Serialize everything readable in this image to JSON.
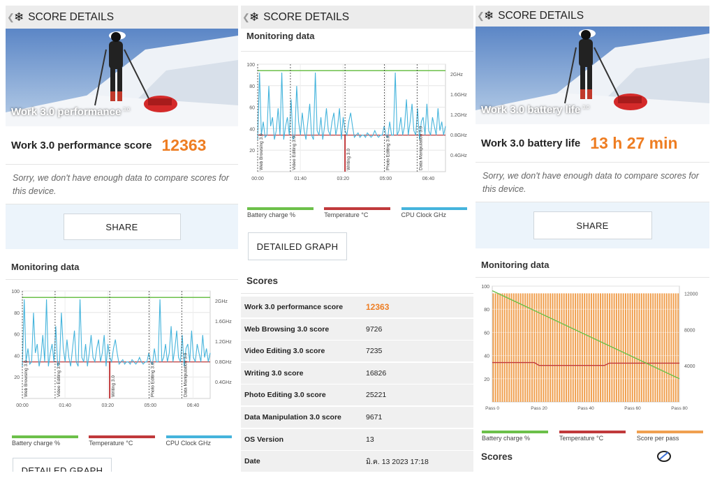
{
  "panel1": {
    "header_title": "SCORE DETAILS",
    "hero_label": "Work 3.0 performance",
    "hero_sup": "3.0",
    "score_label": "Work 3.0 performance score",
    "score_value": "12363",
    "sorry_text": "Sorry, we don't have enough data to compare scores for this device.",
    "share_label": "SHARE",
    "monitoring_title": "Monitoring data",
    "detailed_graph_label": "DETAILED GRAPH"
  },
  "panel2": {
    "header_title": "SCORE DETAILS",
    "monitoring_title": "Monitoring data",
    "detailed_graph_label": "DETAILED GRAPH",
    "scores_title": "Scores",
    "scores": [
      {
        "name": "Work 3.0 performance score",
        "value": "12363"
      },
      {
        "name": "Web Browsing 3.0 score",
        "value": "9726"
      },
      {
        "name": "Video Editing 3.0 score",
        "value": "7235"
      },
      {
        "name": "Writing 3.0 score",
        "value": "16826"
      },
      {
        "name": "Photo Editing 3.0 score",
        "value": "25221"
      },
      {
        "name": "Data Manipulation 3.0 score",
        "value": "9671"
      },
      {
        "name": "OS Version",
        "value": "13"
      },
      {
        "name": "Date",
        "value": "มิ.ค. 13 2023 17:18"
      }
    ]
  },
  "panel3": {
    "header_title": "SCORE DETAILS",
    "hero_label": "Work 3.0 battery life",
    "hero_sup": "3.0",
    "score_label": "Work 3.0 battery life",
    "score_value": "13 h 27 min",
    "sorry_text": "Sorry, we don't have enough data to compare scores for this device.",
    "share_label": "SHARE",
    "monitoring_title": "Monitoring data",
    "scores_title": "Scores"
  },
  "colors": {
    "accent_orange": "#ee7d22",
    "battery_green": "#6cc04a",
    "temperature_red": "#c0393b",
    "cpu_blue": "#45b4dc",
    "score_orange": "#f0a050"
  },
  "chart_data": [
    {
      "type": "line",
      "y_left_ticks": [
        "100",
        "80",
        "60",
        "40",
        "20"
      ],
      "y_right_ticks": [
        "2GHz",
        "1.6GHz",
        "1.2GHz",
        "0.8GHz",
        "0.4GHz"
      ],
      "x_ticks": [
        "00:00",
        "01:40",
        "03:20",
        "05:00",
        "06:40"
      ],
      "phase_labels": [
        "Web Browsing 3.0",
        "Video Editing 3.0",
        "Writing 3.0",
        "Photo Editing 3.0",
        "Data Manipulation 3.0"
      ],
      "phase_starts": [
        0,
        75,
        200,
        290,
        365
      ],
      "x_max": 430,
      "y_max": 100,
      "battery_level": 94,
      "temperature_level": 34,
      "cpu_clock_ghz": [
        0.5,
        2.0,
        0.6,
        0.9,
        0.55,
        0.6,
        1.7,
        0.8,
        1.0,
        0.5,
        0.7,
        1.2,
        0.6,
        2.0,
        0.5,
        0.8,
        1.0,
        0.6,
        1.4,
        0.5,
        0.6,
        1.7,
        0.9,
        0.6,
        1.1,
        0.7,
        0.5,
        0.9,
        1.3,
        0.6,
        0.5,
        2.0,
        0.7,
        0.6,
        1.0,
        0.5,
        0.8,
        1.2,
        0.7,
        0.6,
        0.9,
        1.1,
        0.6,
        0.8,
        1.2,
        0.5,
        1.0,
        0.7,
        0.6,
        0.9,
        1.1,
        0.8,
        0.55,
        0.6,
        0.65,
        0.55,
        0.6,
        0.6,
        0.55,
        0.65,
        0.6,
        0.55,
        0.6,
        0.7,
        0.6,
        0.55,
        0.6,
        0.6,
        0.8,
        0.6,
        0.55,
        0.9,
        0.6,
        0.6,
        2.0,
        0.6,
        0.7,
        1.0,
        0.6,
        0.8,
        1.4,
        0.6,
        0.9,
        1.3,
        0.7,
        0.6,
        1.2,
        0.5,
        0.9,
        1.0,
        0.6,
        1.3,
        0.7,
        0.6,
        1.0,
        0.8,
        0.6,
        1.2,
        0.7,
        0.9,
        0.6,
        0.8
      ],
      "legend": [
        "Battery charge %",
        "Temperature °C",
        "CPU Clock GHz"
      ]
    },
    {
      "type": "bar",
      "y_left_ticks": [
        "100",
        "80",
        "60",
        "40",
        "20"
      ],
      "y_right_ticks": [
        "12000",
        "8000",
        "4000"
      ],
      "x_ticks": [
        "Pass 0",
        "Pass 20",
        "Pass 40",
        "Pass 60",
        "Pass 80"
      ],
      "pass_count": 82,
      "score_per_pass": 12000,
      "battery_start": 96,
      "battery_end": 20,
      "temperature_level": 33,
      "legend": [
        "Battery charge %",
        "Temperature °C",
        "Score per pass"
      ]
    }
  ]
}
